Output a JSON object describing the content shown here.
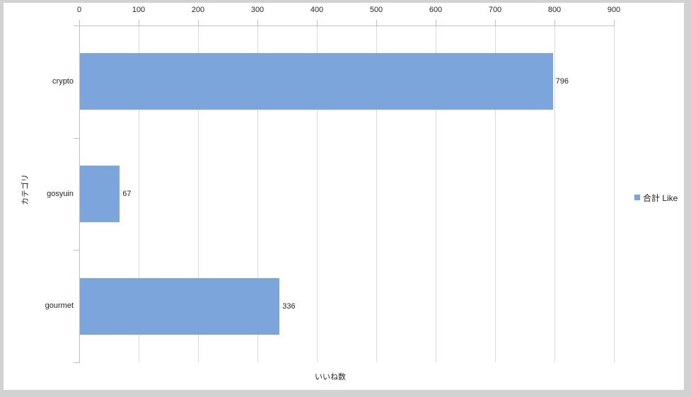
{
  "chart": {
    "colors": {
      "frame": "#d2d2d2",
      "background": "#ffffff",
      "bar": "#7ca5dc",
      "gridline": "#d9d9d9",
      "axis": "#c0c0c0",
      "text": "#1f1f1f"
    }
  },
  "chart_data": {
    "type": "bar",
    "orientation": "horizontal",
    "title": "",
    "categories": [
      "crypto",
      "gosyuin",
      "gourmet"
    ],
    "values": [
      796,
      67,
      336
    ],
    "data_labels": [
      "796",
      "67",
      "336"
    ],
    "series_name": "合計 Like",
    "xlabel": "いいね数",
    "ylabel": "カテゴリ",
    "xlim": [
      0,
      900
    ],
    "xticks": [
      0,
      100,
      200,
      300,
      400,
      500,
      600,
      700,
      800,
      900
    ],
    "value_axis_position": "top",
    "grid": true,
    "legend_position": "right"
  }
}
